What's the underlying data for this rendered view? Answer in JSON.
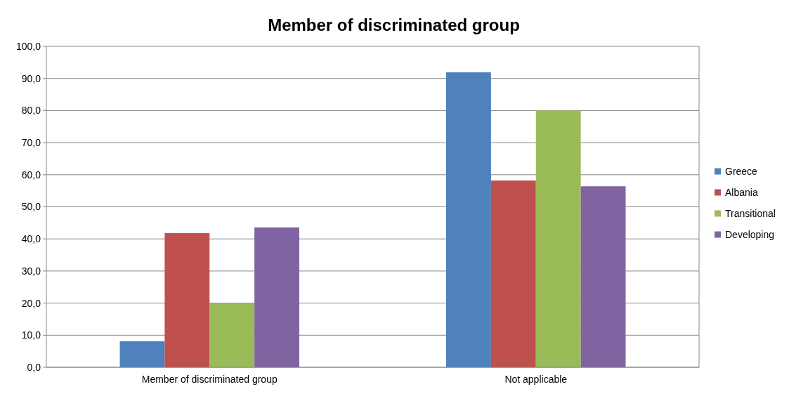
{
  "chart_data": {
    "type": "bar",
    "title": "Member of discriminated group",
    "categories": [
      "Member of discriminated group",
      "Not applicable"
    ],
    "series": [
      {
        "name": "Greece",
        "color": "#4f81bd",
        "values": [
          8.1,
          91.9
        ]
      },
      {
        "name": "Albania",
        "color": "#c0504d",
        "values": [
          41.8,
          58.2
        ]
      },
      {
        "name": "Transitional",
        "color": "#9bbb59",
        "values": [
          20.0,
          80.0
        ]
      },
      {
        "name": "Developing",
        "color": "#8064a2",
        "values": [
          43.6,
          56.4
        ]
      }
    ],
    "ylim": [
      0,
      100
    ],
    "yticks": [
      {
        "value": 0,
        "label": "0,0"
      },
      {
        "value": 10,
        "label": "10,0"
      },
      {
        "value": 20,
        "label": "20,0"
      },
      {
        "value": 30,
        "label": "30,0"
      },
      {
        "value": 40,
        "label": "40,0"
      },
      {
        "value": 50,
        "label": "50,0"
      },
      {
        "value": 60,
        "label": "60,0"
      },
      {
        "value": 70,
        "label": "70,0"
      },
      {
        "value": 80,
        "label": "80,0"
      },
      {
        "value": 90,
        "label": "90,0"
      },
      {
        "value": 100,
        "label": "100,0"
      }
    ],
    "grid": "y",
    "legend": "right"
  }
}
